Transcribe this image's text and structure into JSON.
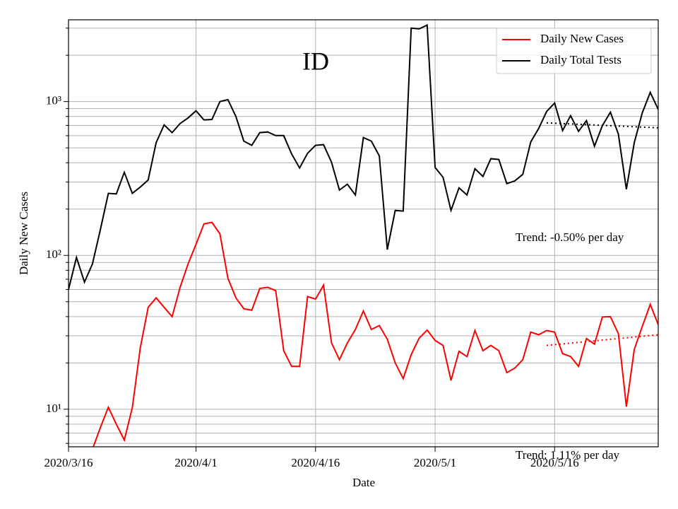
{
  "chart_data": {
    "type": "line",
    "title": "ID",
    "xlabel": "Date",
    "ylabel": "Daily New Cases",
    "log_y": true,
    "grid": true,
    "legend": "upper right",
    "xlim": [
      "2020-03-16",
      "2020-05-29"
    ],
    "xticks": [
      {
        "value": "2020-03-16",
        "label": "2020/3/16"
      },
      {
        "value": "2020-04-01",
        "label": "2020/4/1"
      },
      {
        "value": "2020-04-16",
        "label": "2020/4/16"
      },
      {
        "value": "2020-05-01",
        "label": "2020/5/1"
      },
      {
        "value": "2020-05-16",
        "label": "2020/5/16"
      }
    ],
    "ylim": [
      5.7,
      3400
    ],
    "yticks": [
      {
        "value": 10,
        "label": "10¹"
      },
      {
        "value": 100,
        "label": "10²"
      },
      {
        "value": 1000,
        "label": "10³"
      }
    ],
    "yminor": [
      6,
      7,
      8,
      9,
      20,
      30,
      40,
      50,
      60,
      70,
      80,
      90,
      200,
      300,
      400,
      500,
      600,
      700,
      800,
      900,
      2000,
      3000
    ],
    "x": [
      "2020-03-16",
      "2020-03-17",
      "2020-03-18",
      "2020-03-19",
      "2020-03-20",
      "2020-03-21",
      "2020-03-22",
      "2020-03-23",
      "2020-03-24",
      "2020-03-25",
      "2020-03-26",
      "2020-03-27",
      "2020-03-28",
      "2020-03-29",
      "2020-03-30",
      "2020-03-31",
      "2020-04-01",
      "2020-04-02",
      "2020-04-03",
      "2020-04-04",
      "2020-04-05",
      "2020-04-06",
      "2020-04-07",
      "2020-04-08",
      "2020-04-09",
      "2020-04-10",
      "2020-04-11",
      "2020-04-12",
      "2020-04-13",
      "2020-04-14",
      "2020-04-15",
      "2020-04-16",
      "2020-04-17",
      "2020-04-18",
      "2020-04-19",
      "2020-04-20",
      "2020-04-21",
      "2020-04-22",
      "2020-04-23",
      "2020-04-24",
      "2020-04-25",
      "2020-04-26",
      "2020-04-27",
      "2020-04-28",
      "2020-04-29",
      "2020-04-30",
      "2020-05-01",
      "2020-05-02",
      "2020-05-03",
      "2020-05-04",
      "2020-05-05",
      "2020-05-06",
      "2020-05-07",
      "2020-05-08",
      "2020-05-09",
      "2020-05-10",
      "2020-05-11",
      "2020-05-12",
      "2020-05-13",
      "2020-05-14",
      "2020-05-15",
      "2020-05-16",
      "2020-05-17",
      "2020-05-18",
      "2020-05-19",
      "2020-05-20",
      "2020-05-21",
      "2020-05-22",
      "2020-05-23",
      "2020-05-24",
      "2020-05-25",
      "2020-05-26",
      "2020-05-27",
      "2020-05-28",
      "2020-05-29"
    ],
    "series": [
      {
        "name": "Daily New Cases",
        "color": "#ff0000",
        "values": [
          null,
          null,
          null,
          5.5,
          7.6,
          10.3,
          8.0,
          6.3,
          10.2,
          25,
          46,
          53,
          46,
          40,
          62,
          88,
          118,
          160,
          164,
          138,
          71,
          53,
          45,
          44,
          61,
          62,
          59,
          24,
          19,
          19,
          54,
          52,
          64,
          27,
          21,
          27,
          33,
          43.5,
          33,
          35,
          28.5,
          20,
          15.8,
          22.6,
          29,
          32.7,
          28,
          26,
          15.4,
          23.8,
          22,
          32.5,
          24,
          26,
          24,
          17.3,
          18.5,
          21,
          31.7,
          30.5,
          32.5,
          31.7,
          23,
          22,
          19,
          28.8,
          26.5,
          39.8,
          40,
          31,
          10.4,
          24.5,
          34.5,
          48,
          35.5
        ]
      },
      {
        "name": "Daily Total Tests",
        "color": "#000000",
        "values": [
          60,
          97,
          67,
          88,
          147,
          253,
          251,
          347,
          253,
          278,
          309,
          541,
          705,
          628,
          720,
          783,
          871,
          760,
          765,
          1000,
          1030,
          800,
          553,
          519,
          628,
          634,
          601,
          601,
          457,
          370,
          461,
          519,
          525,
          403,
          266,
          290,
          247,
          583,
          553,
          443,
          109,
          196,
          194,
          3000,
          2970,
          3140,
          373,
          322,
          196,
          275,
          247,
          366,
          326,
          425,
          420,
          293,
          305,
          336,
          547,
          668,
          862,
          979,
          648,
          809,
          641,
          751,
          513,
          698,
          853,
          614,
          269,
          541,
          844,
          1147,
          890
        ]
      }
    ],
    "trends": [
      {
        "color": "#ff0000",
        "x": [
          "2020-05-15",
          "2020-05-29"
        ],
        "values": [
          26,
          30.5
        ]
      },
      {
        "color": "#000000",
        "x": [
          "2020-05-15",
          "2020-05-29"
        ],
        "values": [
          727,
          675
        ]
      }
    ],
    "annotations": [
      "Trend: -0.50% per day",
      "Trend: 1.11% per day"
    ]
  }
}
